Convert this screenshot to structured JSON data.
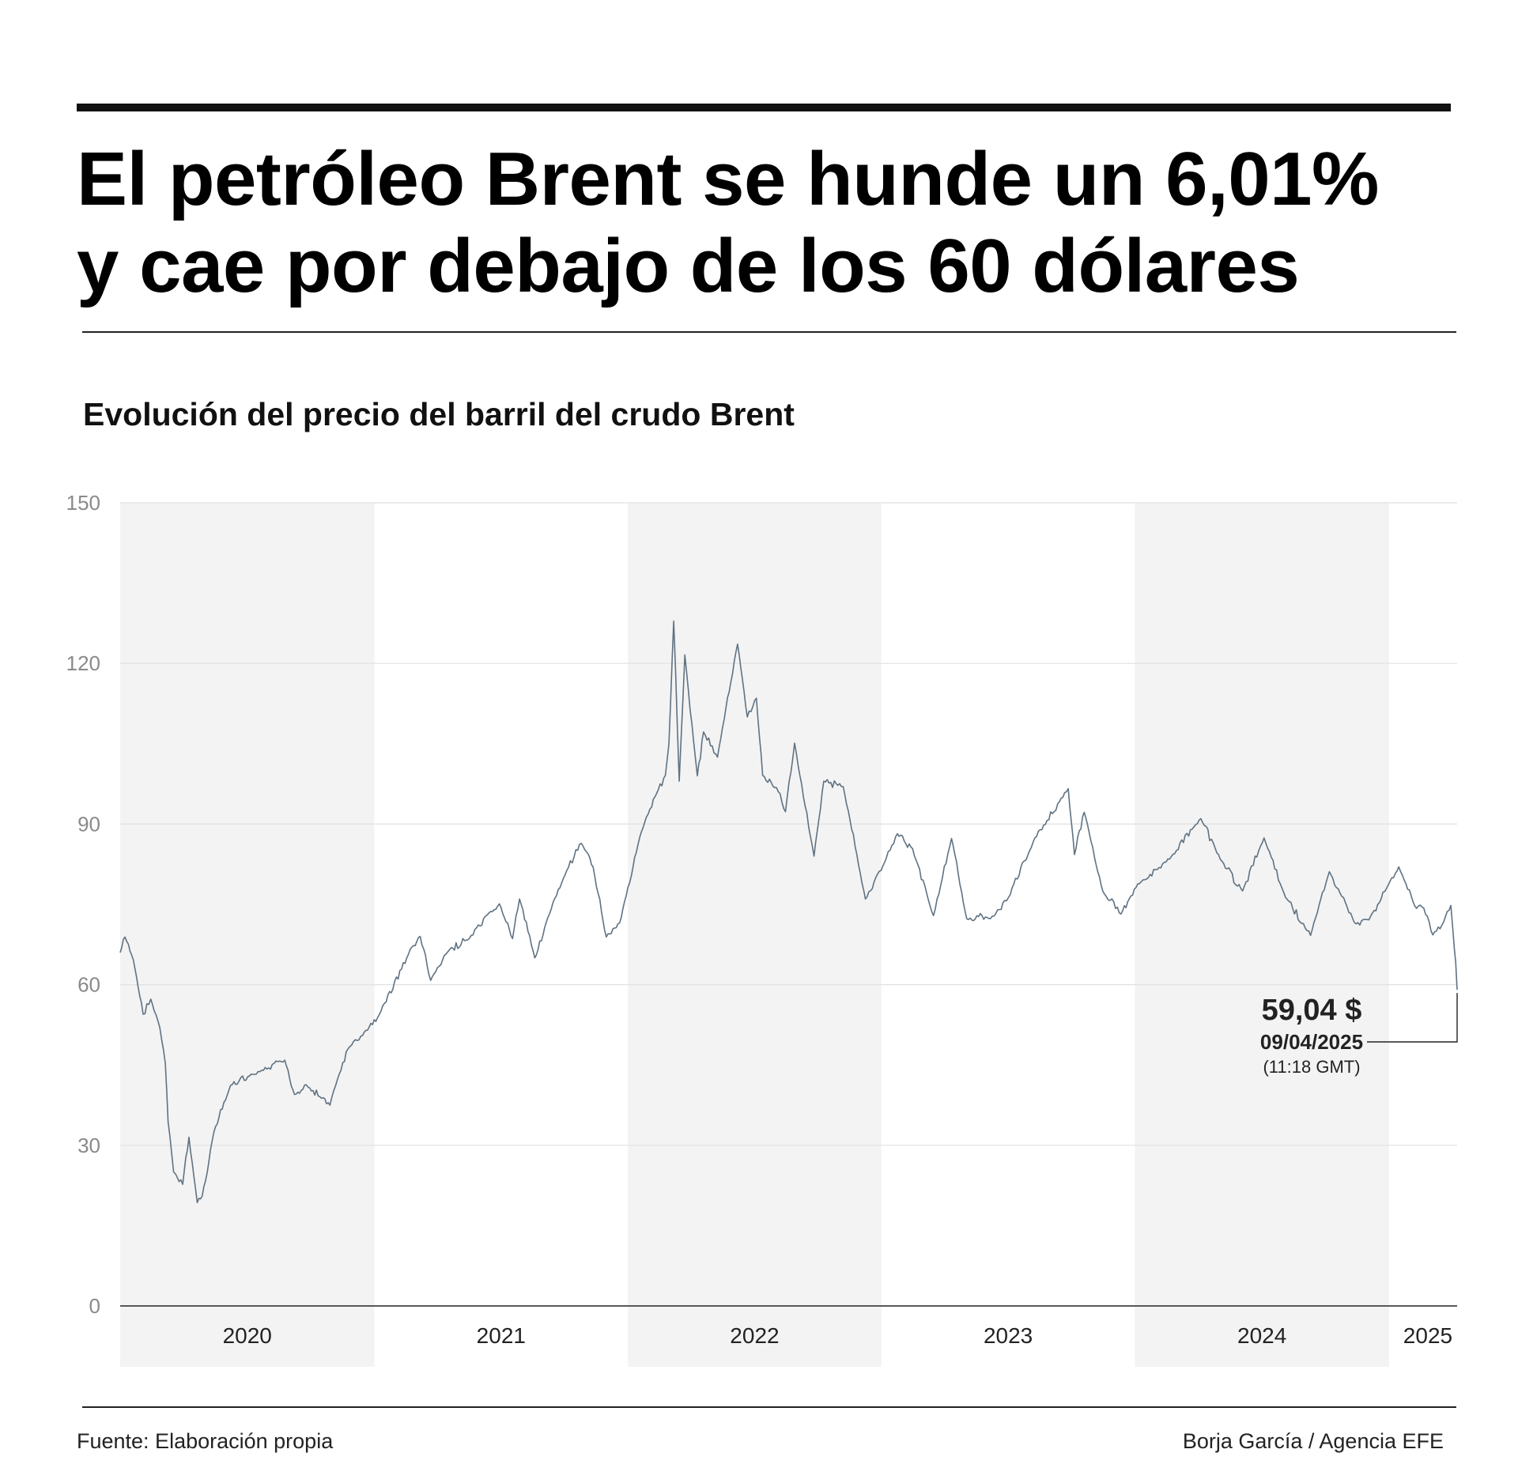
{
  "header": {
    "title_line1": "El petróleo Brent se hunde un 6,01%",
    "title_line2": "y cae por debajo de los 60 dólares"
  },
  "footer": {
    "source": "Fuente: Elaboración propia",
    "credit": "Borja García / Agencia EFE"
  },
  "colors": {
    "line": "#5f7282",
    "band": "#f3f3f3",
    "grid": "#e1e1e1",
    "axis": "#222222",
    "tick_label": "#8a8a8a"
  },
  "chart_data": {
    "type": "line",
    "title": "Evolución del precio del barril del crudo Brent",
    "xlabel": "",
    "ylabel": "",
    "ylim": [
      0,
      150
    ],
    "yticks": [
      0,
      30,
      60,
      90,
      120,
      150
    ],
    "grid": true,
    "alternating_year_bands": true,
    "x_domain": [
      "2020-01-01",
      "2025-04-09"
    ],
    "years": [
      "2020",
      "2021",
      "2022",
      "2023",
      "2024",
      "2025"
    ],
    "series": [
      {
        "x": [
          "2020-01-01",
          "2020-01-08",
          "2020-01-20",
          "2020-02-03",
          "2020-02-14",
          "2020-02-27",
          "2020-03-06",
          "2020-03-10",
          "2020-03-18",
          "2020-03-31",
          "2020-04-09",
          "2020-04-21",
          "2020-04-28",
          "2020-05-15",
          "2020-06-08",
          "2020-07-15",
          "2020-08-25",
          "2020-09-08",
          "2020-09-25",
          "2020-10-29",
          "2020-11-09",
          "2020-11-24",
          "2020-12-15",
          "2021-01-08",
          "2021-02-24",
          "2021-03-08",
          "2021-03-23",
          "2021-04-19",
          "2021-05-18",
          "2021-06-30",
          "2021-07-19",
          "2021-07-29",
          "2021-08-20",
          "2021-09-08",
          "2021-10-05",
          "2021-10-26",
          "2021-11-12",
          "2021-12-01",
          "2021-12-20",
          "2022-01-18",
          "2022-02-14",
          "2022-02-24",
          "2022-03-01",
          "2022-03-08",
          "2022-03-16",
          "2022-03-24",
          "2022-04-11",
          "2022-04-20",
          "2022-05-10",
          "2022-06-08",
          "2022-06-22",
          "2022-07-05",
          "2022-07-14",
          "2022-08-03",
          "2022-08-16",
          "2022-08-29",
          "2022-09-26",
          "2022-10-10",
          "2022-11-07",
          "2022-12-09",
          "2023-01-03",
          "2023-01-24",
          "2023-02-15",
          "2023-03-17",
          "2023-04-12",
          "2023-05-04",
          "2023-06-12",
          "2023-07-03",
          "2023-08-10",
          "2023-09-27",
          "2023-10-06",
          "2023-10-20",
          "2023-11-16",
          "2023-12-12",
          "2024-01-05",
          "2024-02-15",
          "2024-04-05",
          "2024-05-03",
          "2024-06-04",
          "2024-07-05",
          "2024-08-05",
          "2024-09-10",
          "2024-10-07",
          "2024-11-12",
          "2024-12-03",
          "2025-01-15",
          "2025-02-07",
          "2025-02-20",
          "2025-03-05",
          "2025-03-18",
          "2025-03-31",
          "2025-04-03",
          "2025-04-07",
          "2025-04-09"
        ],
        "values": [
          66,
          68.9,
          64.6,
          54.5,
          57.3,
          52,
          45.3,
          34.4,
          25,
          22.7,
          31.5,
          19.3,
          20.5,
          32.5,
          41.2,
          43.3,
          45.9,
          39.5,
          41.3,
          37.5,
          42.4,
          48,
          50.5,
          54.4,
          67,
          69,
          60.8,
          66.5,
          68.7,
          75.1,
          68.6,
          76,
          65,
          72.6,
          81.3,
          86.4,
          82,
          68.9,
          71.5,
          87.5,
          96.5,
          99.1,
          104.9,
          127.9,
          98,
          121.6,
          99,
          107.2,
          102.5,
          123.6,
          110,
          113.5,
          99.1,
          96.8,
          92.3,
          105.1,
          84,
          98,
          97,
          76,
          82.1,
          88.2,
          85.4,
          72.9,
          87.3,
          72.3,
          72.8,
          76.3,
          87.4,
          96.6,
          84.3,
          92.2,
          77.4,
          73.2,
          78.8,
          82.9,
          91,
          83.4,
          77.5,
          87.4,
          76.3,
          69.2,
          81.1,
          71.6,
          72.1,
          82,
          74.7,
          74.3,
          69.3,
          71.1,
          74.8,
          70.1,
          64.2,
          59.04
        ]
      }
    ],
    "annotation": {
      "value_label": "59,04 $",
      "date_label": "09/04/2025",
      "time_label": "(11:18 GMT)"
    }
  }
}
